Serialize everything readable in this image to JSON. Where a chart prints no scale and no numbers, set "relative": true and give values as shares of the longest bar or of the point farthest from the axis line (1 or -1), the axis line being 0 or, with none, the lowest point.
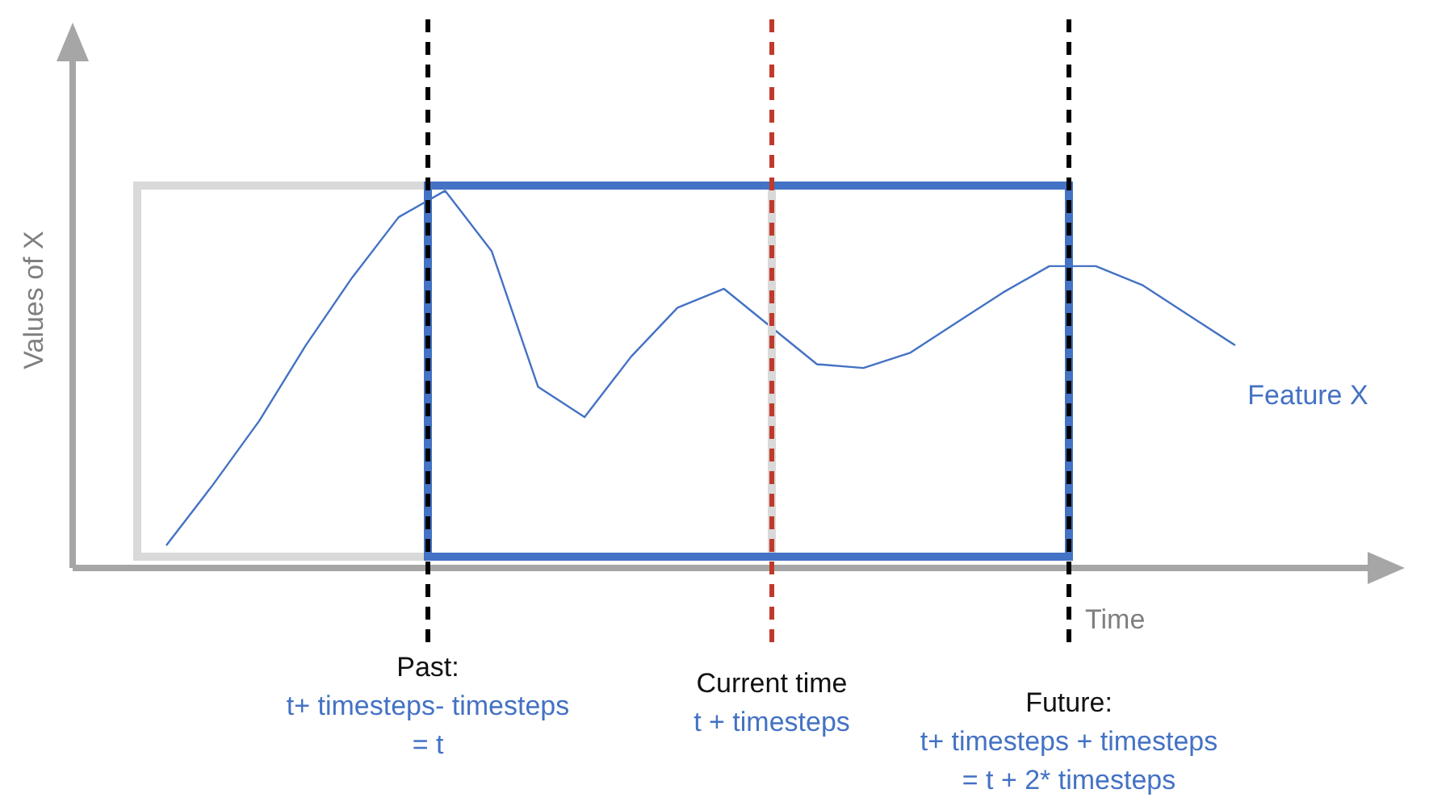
{
  "chart_data": {
    "type": "line",
    "relative": true,
    "legend": false,
    "marker": "none",
    "line_style": "solid",
    "ylabel": "Values of X",
    "xlabel": "Time",
    "categories": [
      null,
      null,
      null,
      null,
      null,
      null,
      null,
      null,
      null,
      null,
      null,
      null,
      null,
      null,
      null,
      null,
      null,
      null,
      null,
      null,
      null,
      null,
      null,
      null
    ],
    "series": [
      {
        "name": "Feature X",
        "color": "#4472c4",
        "values": [
          0.06,
          0.22,
          0.39,
          0.59,
          0.77,
          0.93,
          1.0,
          0.84,
          0.48,
          0.4,
          0.56,
          0.69,
          0.74,
          0.64,
          0.54,
          0.53,
          0.57,
          0.65,
          0.73,
          0.8,
          0.8,
          0.75,
          0.67,
          0.59
        ]
      }
    ],
    "annotations": [
      "Past:\nt+ timesteps- timesteps\n= t",
      "Current time\nt + timesteps",
      "Future:\nt+ timesteps + timesteps\n= t + 2* timesteps"
    ]
  }
}
